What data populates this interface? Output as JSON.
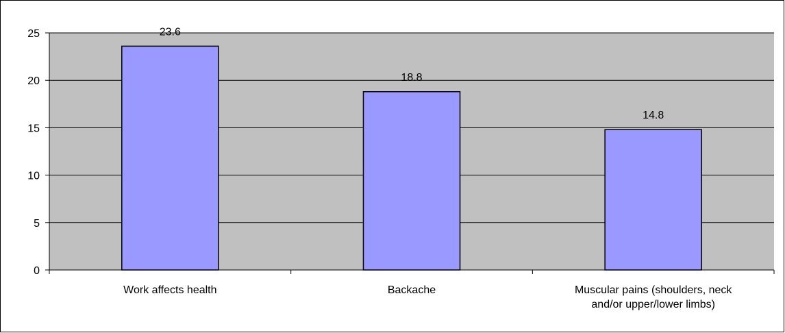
{
  "chart_data": {
    "type": "bar",
    "title": "",
    "xlabel": "",
    "ylabel": "",
    "categories": [
      [
        "Work affects health"
      ],
      [
        "Backache"
      ],
      [
        "Muscular pains (shoulders, neck",
        "and/or upper/lower limbs)"
      ]
    ],
    "values": [
      23.6,
      18.8,
      14.8
    ],
    "data_labels": [
      "23.6",
      "18.8",
      "14.8"
    ],
    "ylim": [
      0,
      25
    ],
    "yticks": [
      0,
      5,
      10,
      15,
      20,
      25
    ],
    "ytick_labels": [
      "0",
      "5",
      "10",
      "15",
      "20",
      "25"
    ],
    "grid": "horizontal",
    "legend": "none",
    "colors": {
      "bar_fill": "#9999FF",
      "bar_stroke": "#000000",
      "plot_background": "#C0C0C0",
      "gridline": "#000000",
      "frame": "#000000"
    }
  }
}
